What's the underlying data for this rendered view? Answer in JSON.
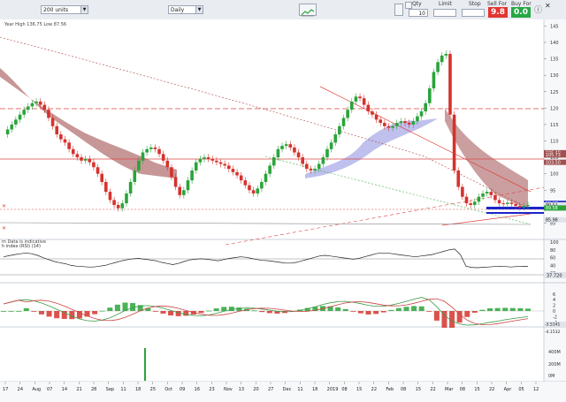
{
  "toolbar": {
    "units_select": "200 units",
    "period_select": "Daily",
    "qty_label": "Qty",
    "qty_value": "10",
    "limit_label": "Limit",
    "stop_label": "Stop",
    "sell_label": "Sell For",
    "sell_price": "9.8",
    "buy_label": "Buy For",
    "buy_price": "0.0"
  },
  "colors": {
    "sell": "#e3342f",
    "buy": "#27a744",
    "candle_up": "#2aa43a",
    "candle_down": "#d6322d"
  },
  "main_chart": {
    "header_text": "Year High 136.75 Low 87.56",
    "footer_note": "m Data is indicative",
    "y_ticks": [
      "145",
      "140",
      "135",
      "130",
      "125",
      "120",
      "115",
      "110",
      "105",
      "100",
      "95",
      "90",
      "85"
    ],
    "price_labels": [
      "106.40",
      "105.73",
      "103.50",
      "90.97",
      "90.52",
      "89.58",
      "85.98"
    ]
  },
  "rsi_panel": {
    "label": "h index (RSI) (14)",
    "y_ticks": [
      "100",
      "80",
      "60",
      "40",
      "20"
    ],
    "value_label": "37.720"
  },
  "macd_panel": {
    "y_ticks": [
      "6",
      "4",
      "2",
      "0",
      "-2",
      "-4"
    ],
    "value_labels": [
      "-3.5141",
      "-4.1532"
    ]
  },
  "volume_panel": {
    "y_ticks": [
      "400M",
      "200M",
      "0M"
    ]
  },
  "x_axis": {
    "labels": [
      "17",
      "24",
      "Aug",
      "07",
      "14",
      "21",
      "28",
      "Sep",
      "11",
      "18",
      "25",
      "Oct",
      "09",
      "16",
      "23",
      "Nov",
      "13",
      "20",
      "27",
      "Dec",
      "11",
      "18",
      "2019",
      "08",
      "15",
      "22",
      "Feb",
      "08",
      "15",
      "22",
      "Mar",
      "08",
      "15",
      "22",
      "Apr",
      "05",
      "12"
    ]
  },
  "chart_data": {
    "type": "candlestick",
    "ylim": [
      80,
      147
    ],
    "close": [
      112,
      113.5,
      115,
      116.5,
      118,
      119.5,
      120.5,
      121.5,
      122,
      121,
      119.5,
      117,
      114.5,
      112,
      110.5,
      109.5,
      107.5,
      106,
      105,
      104,
      104.5,
      103.5,
      102,
      100,
      97.5,
      94.5,
      92,
      90.5,
      89.5,
      91,
      94,
      97.5,
      101,
      104,
      106.5,
      107.5,
      108,
      107.5,
      106,
      104,
      102,
      99,
      96,
      93.5,
      95,
      98,
      101,
      103.5,
      104.5,
      105,
      104.5,
      104,
      103.5,
      103,
      102.5,
      101.5,
      100.5,
      99.5,
      98,
      96.5,
      95,
      94,
      95.5,
      97.5,
      100,
      102.5,
      105,
      107.5,
      108.5,
      109,
      108,
      106.5,
      105,
      103,
      101.5,
      101,
      101.5,
      103,
      105,
      107.5,
      109.5,
      112,
      114.5,
      117,
      119.5,
      122,
      123.5,
      123,
      121,
      119,
      118,
      116.5,
      115.5,
      114.5,
      114,
      114.5,
      115.5,
      116,
      115.5,
      115,
      116,
      117.5,
      119,
      121.5,
      126,
      131,
      134,
      136,
      136.5,
      118,
      101,
      96,
      93,
      91,
      90.5,
      91.5,
      93,
      94,
      94.5,
      93.5,
      92,
      91,
      90.8,
      91.2,
      90.8,
      90.2,
      89.8,
      90.2,
      90.5
    ],
    "rsi": [
      62,
      65,
      68,
      70,
      72,
      70,
      66,
      60,
      55,
      50,
      47,
      44,
      40,
      38,
      37,
      36,
      36,
      38,
      40,
      44,
      48,
      52,
      55,
      57,
      58,
      56,
      54,
      52,
      48,
      45,
      42,
      45,
      50,
      54,
      56,
      57,
      56,
      54,
      52,
      55,
      58,
      60,
      62,
      61,
      58,
      55,
      53,
      52,
      50,
      48,
      46,
      46,
      48,
      52,
      56,
      60,
      64,
      66,
      64,
      62,
      60,
      58,
      56,
      58,
      62,
      66,
      70,
      72,
      72,
      70,
      68,
      66,
      64,
      62,
      64,
      66,
      68,
      72,
      76,
      80,
      82,
      68,
      38,
      35,
      34,
      35,
      36,
      37,
      38,
      37,
      36,
      37,
      38,
      37.7
    ],
    "macd": [
      2.5,
      3.2,
      3.8,
      4.0,
      3.6,
      2.8,
      1.8,
      0.6,
      -0.6,
      -1.8,
      -2.8,
      -3.4,
      -3.6,
      -3.2,
      -2.4,
      -1.2,
      0.2,
      1.2,
      1.8,
      1.9,
      1.6,
      1.0,
      0.2,
      -0.6,
      -1.2,
      -1.6,
      -1.7,
      -1.4,
      -0.8,
      -0.1,
      0.5,
      0.9,
      1.1,
      1.0,
      0.7,
      0.3,
      -0.1,
      -0.3,
      -0.2,
      0.2,
      0.8,
      1.5,
      2.3,
      2.9,
      3.3,
      3.4,
      3.1,
      2.6,
      2.0,
      1.7,
      1.7,
      2.1,
      2.7,
      3.4,
      4.2,
      4.8,
      4.0,
      1.5,
      -1.5,
      -3.6,
      -4.6,
      -5.0,
      -4.9,
      -4.5,
      -4.0,
      -3.6,
      -3.1,
      -2.7,
      -2.3,
      -2.0
    ],
    "volume_spike_label": "Sep"
  }
}
